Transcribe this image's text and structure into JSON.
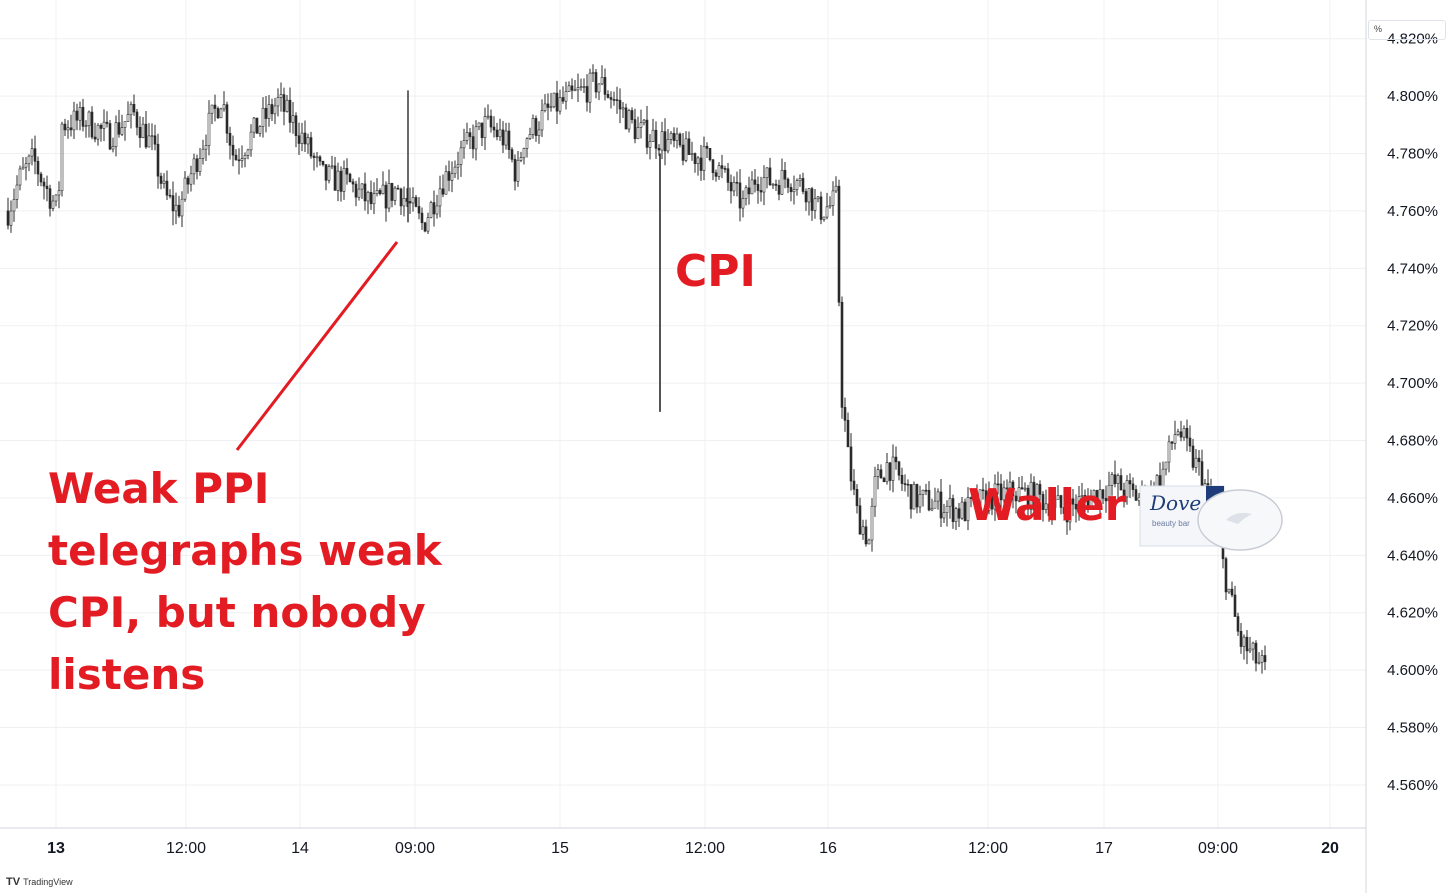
{
  "chart_data": {
    "type": "bar",
    "ylim": [
      4.545,
      4.83
    ],
    "y_ticks": [
      "4.560%",
      "4.580%",
      "4.600%",
      "4.620%",
      "4.640%",
      "4.660%",
      "4.680%",
      "4.700%",
      "4.720%",
      "4.740%",
      "4.760%",
      "4.780%",
      "4.800%",
      "4.820%"
    ],
    "y_tick_values": [
      4.56,
      4.58,
      4.6,
      4.62,
      4.64,
      4.66,
      4.68,
      4.7,
      4.72,
      4.74,
      4.76,
      4.78,
      4.8,
      4.82
    ],
    "x_tick_labels": [
      "13",
      "12:00",
      "14",
      "09:00",
      "15",
      "12:00",
      "16",
      "12:00",
      "17",
      "09:00",
      "20"
    ],
    "x_tick_bold": [
      true,
      false,
      false,
      false,
      false,
      false,
      false,
      false,
      false,
      false,
      true
    ],
    "grid": true,
    "price_key": [
      [
        0,
        4.76
      ],
      [
        0.01,
        4.772
      ],
      [
        0.02,
        4.778
      ],
      [
        0.03,
        4.768
      ],
      [
        0.04,
        4.76
      ],
      [
        0.042,
        4.79
      ],
      [
        0.06,
        4.792
      ],
      [
        0.08,
        4.786
      ],
      [
        0.1,
        4.794
      ],
      [
        0.115,
        4.782
      ],
      [
        0.125,
        4.765
      ],
      [
        0.135,
        4.76
      ],
      [
        0.145,
        4.772
      ],
      [
        0.16,
        4.79
      ],
      [
        0.17,
        4.8
      ],
      [
        0.18,
        4.778
      ],
      [
        0.2,
        4.79
      ],
      [
        0.215,
        4.798
      ],
      [
        0.225,
        4.792
      ],
      [
        0.235,
        4.785
      ],
      [
        0.25,
        4.772
      ],
      [
        0.27,
        4.77
      ],
      [
        0.29,
        4.762
      ],
      [
        0.31,
        4.768
      ],
      [
        0.33,
        4.755
      ],
      [
        0.345,
        4.77
      ],
      [
        0.36,
        4.78
      ],
      [
        0.38,
        4.79
      ],
      [
        0.395,
        4.785
      ],
      [
        0.405,
        4.772
      ],
      [
        0.41,
        4.785
      ],
      [
        0.43,
        4.795
      ],
      [
        0.45,
        4.8
      ],
      [
        0.47,
        4.805
      ],
      [
        0.48,
        4.8
      ],
      [
        0.5,
        4.788
      ],
      [
        0.52,
        4.785
      ],
      [
        0.54,
        4.78
      ],
      [
        0.56,
        4.778
      ],
      [
        0.575,
        4.768
      ],
      [
        0.585,
        4.762
      ],
      [
        0.595,
        4.772
      ],
      [
        0.61,
        4.77
      ],
      [
        0.62,
        4.772
      ],
      [
        0.635,
        4.768
      ],
      [
        0.645,
        4.76
      ],
      [
        0.655,
        4.762
      ],
      [
        0.66,
        4.765
      ],
      [
        0.662,
        4.7
      ],
      [
        0.665,
        4.69
      ],
      [
        0.668,
        4.675
      ],
      [
        0.675,
        4.655
      ],
      [
        0.685,
        4.645
      ],
      [
        0.69,
        4.665
      ],
      [
        0.7,
        4.672
      ],
      [
        0.72,
        4.66
      ],
      [
        0.74,
        4.658
      ],
      [
        0.76,
        4.655
      ],
      [
        0.78,
        4.66
      ],
      [
        0.8,
        4.662
      ],
      [
        0.82,
        4.66
      ],
      [
        0.84,
        4.656
      ],
      [
        0.86,
        4.66
      ],
      [
        0.88,
        4.665
      ],
      [
        0.9,
        4.66
      ],
      [
        0.91,
        4.662
      ],
      [
        0.92,
        4.67
      ],
      [
        0.93,
        4.685
      ],
      [
        0.94,
        4.675
      ],
      [
        0.95,
        4.668
      ],
      [
        0.96,
        4.65
      ],
      [
        0.97,
        4.63
      ],
      [
        0.98,
        4.61
      ],
      [
        0.99,
        4.605
      ],
      [
        1.0,
        4.6
      ]
    ]
  },
  "annotations": {
    "ppi": "Weak PPI telegraphs weak CPI, but nobody listens",
    "cpi": "CPI",
    "waller": "Waller"
  },
  "price_unit": "%",
  "footer": {
    "logo": "TV",
    "brand": "TradingView"
  },
  "soap": {
    "brand": "Dove",
    "sub": "beauty bar"
  },
  "colors": {
    "annotation": "#e31b23",
    "candle": "#2a2a2a",
    "grid": "#eef0f3",
    "axis_text": "#131722"
  }
}
